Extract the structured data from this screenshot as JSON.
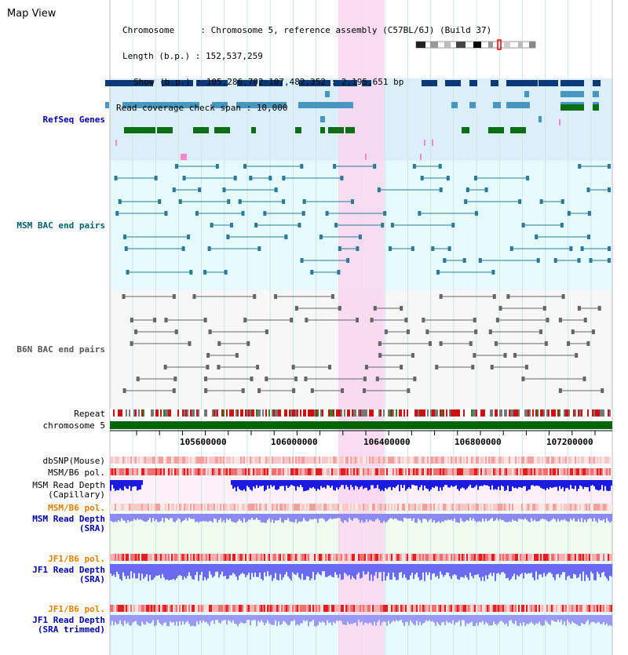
{
  "window": {
    "title": "Map View"
  },
  "info": {
    "chromosome_key": "Chromosome     : ",
    "chromosome_value": "Chromosome 5, reference assembly (C57BL/6J) (Build 37)",
    "length_key": "Length (b.p.) : ",
    "length_value": "152,537,259",
    "show_key": "Show (b.p.) : ",
    "show_value": "105,286,702-107,482,352 : 2,195,651 bp",
    "span_key": "Read coverage check span : ",
    "span_value": "10,000"
  },
  "tracks": {
    "refseq": "RefSeq Genes",
    "msm_bac": "MSM BAC end pairs",
    "b6n_bac": "B6N BAC end pairs",
    "repeat": "Repeat",
    "chromosome": "chromosome 5",
    "dbsnp": "dbSNP(Mouse)",
    "msm_b6_pol_1": "MSM/B6 pol.",
    "msm_read_depth_cap_1": "MSM Read Depth",
    "msm_read_depth_cap_2": "(Capillary)",
    "msm_b6_pol_2": "MSM/B6 pol.",
    "msm_read_depth_sra_1": "MSM Read Depth",
    "msm_read_depth_sra_2": "(SRA)",
    "jf1_b6_pol_1": "JF1/B6 pol.",
    "jf1_read_depth_sra_1": "JF1 Read Depth",
    "jf1_read_depth_sra_2": "(SRA)",
    "jf1_b6_pol_2": "JF1/B6 pol.",
    "jf1_read_depth_trim_1": "JF1 Read Depth",
    "jf1_read_depth_trim_2": "(SRA trimmed)"
  },
  "ruler": {
    "ticks": [
      "105600000",
      "106000000",
      "106400000",
      "106800000",
      "107200000"
    ]
  },
  "colors": {
    "refseq_label": "#0000aa",
    "msm_bac_label": "#006070",
    "b6n_bac_label": "#555555",
    "pol_label": "#e08000",
    "depth_label": "#0000aa",
    "highlight": "#f9d6f0",
    "refseq_bg": "#dbeffa",
    "msm_bg": "#e6fbfb",
    "gene_dark": "#0b3a78",
    "gene_mid": "#4796bf",
    "gene_green": "#0a6e14",
    "chrom_bar": "#006600"
  }
}
